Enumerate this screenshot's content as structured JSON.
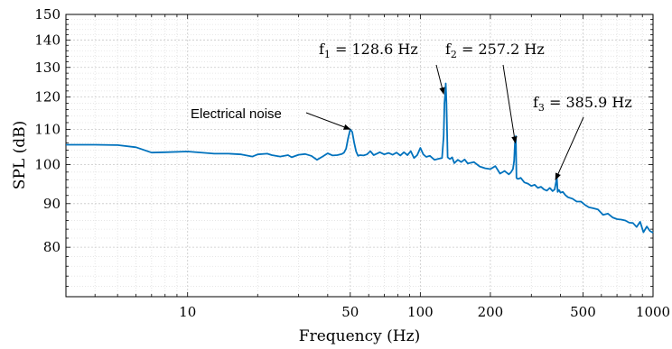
{
  "chart_data": {
    "type": "line",
    "xlabel": "Frequency (Hz)",
    "ylabel": "SPL (dB)",
    "xscale": "log",
    "yscale": "log",
    "xlim": [
      3,
      1000
    ],
    "ylim": [
      70,
      150
    ],
    "x_tick_values": [
      10,
      50,
      100,
      200,
      500,
      1000
    ],
    "x_tick_labels": [
      "10",
      "50",
      "100",
      "200",
      "500",
      "1000"
    ],
    "y_tick_values": [
      80,
      90,
      100,
      110,
      120,
      130,
      140,
      150
    ],
    "y_tick_labels": [
      "80",
      "90",
      "100",
      "110",
      "120",
      "130",
      "140",
      "150"
    ],
    "grid": true,
    "series_color": "#0072BD",
    "series": [
      {
        "x": [
          3,
          4,
          5,
          6,
          7,
          8,
          10,
          12,
          13,
          15,
          17,
          19,
          20,
          22,
          23,
          25,
          27,
          28,
          30,
          32,
          34,
          36,
          38,
          40,
          42,
          44,
          46,
          47,
          48,
          49,
          50,
          51,
          52,
          53,
          54,
          55,
          57,
          59,
          61,
          63,
          65,
          67,
          70,
          73,
          76,
          79,
          82,
          85,
          88,
          91,
          94,
          97,
          100,
          103,
          106,
          110,
          115,
          120,
          124,
          126,
          127,
          128,
          128.6,
          129.5,
          131,
          134,
          137,
          140,
          145,
          150,
          155,
          160,
          170,
          180,
          190,
          200,
          210,
          220,
          230,
          240,
          245,
          250,
          253,
          255,
          257.2,
          259,
          262,
          266,
          270,
          280,
          290,
          300,
          310,
          320,
          330,
          340,
          350,
          360,
          370,
          378,
          382,
          385.9,
          389,
          394,
          400,
          410,
          420,
          430,
          450,
          470,
          490,
          510,
          530,
          550,
          580,
          610,
          640,
          670,
          700,
          730,
          760,
          790,
          820,
          850,
          880,
          910,
          940,
          970,
          1000
        ],
        "y": [
          105.5,
          105.5,
          105.4,
          104.8,
          103.3,
          103.4,
          103.6,
          103.2,
          103.0,
          103.0,
          102.8,
          102.2,
          102.8,
          103.0,
          102.6,
          102.2,
          102.6,
          102.0,
          102.7,
          102.9,
          102.4,
          101.3,
          102.2,
          103.1,
          102.5,
          102.6,
          102.9,
          103.3,
          104.4,
          107.5,
          110.0,
          109.2,
          106.0,
          103.6,
          102.4,
          102.6,
          102.5,
          102.8,
          103.7,
          102.6,
          103.0,
          103.4,
          102.8,
          103.2,
          102.7,
          103.3,
          102.5,
          103.4,
          102.6,
          103.7,
          101.8,
          102.6,
          104.6,
          102.8,
          102.1,
          102.4,
          101.3,
          101.6,
          101.8,
          108.0,
          118.0,
          121.5,
          124.5,
          118.0,
          102.0,
          101.5,
          102.0,
          100.4,
          101.3,
          100.7,
          101.4,
          100.3,
          100.7,
          99.5,
          99.0,
          98.8,
          99.6,
          97.6,
          98.3,
          97.4,
          97.9,
          98.8,
          101.0,
          106.0,
          108.0,
          96.5,
          96.2,
          96.3,
          96.5,
          95.3,
          95.0,
          94.4,
          94.7,
          93.9,
          94.2,
          93.5,
          93.2,
          93.9,
          93.1,
          93.5,
          95.0,
          96.5,
          92.9,
          93.4,
          92.7,
          92.9,
          92.1,
          91.6,
          91.2,
          90.5,
          90.5,
          89.7,
          89.1,
          88.9,
          88.6,
          87.3,
          87.6,
          86.7,
          86.3,
          86.2,
          86.0,
          85.5,
          85.4,
          84.5,
          85.7,
          83.3,
          84.6,
          83.6,
          83.2
        ]
      }
    ],
    "annotations": [
      {
        "text": "Electrical noise",
        "x": 50,
        "y": 110
      },
      {
        "text": "f",
        "sub": "1",
        "value": " = 128.6 Hz",
        "x": 126,
        "y": 121
      },
      {
        "text": "f",
        "sub": "2",
        "value": " = 257.2 Hz",
        "x": 256,
        "y": 106
      },
      {
        "text": "f",
        "sub": "3",
        "value": " = 385.9 Hz",
        "x": 381,
        "y": 96
      }
    ]
  }
}
